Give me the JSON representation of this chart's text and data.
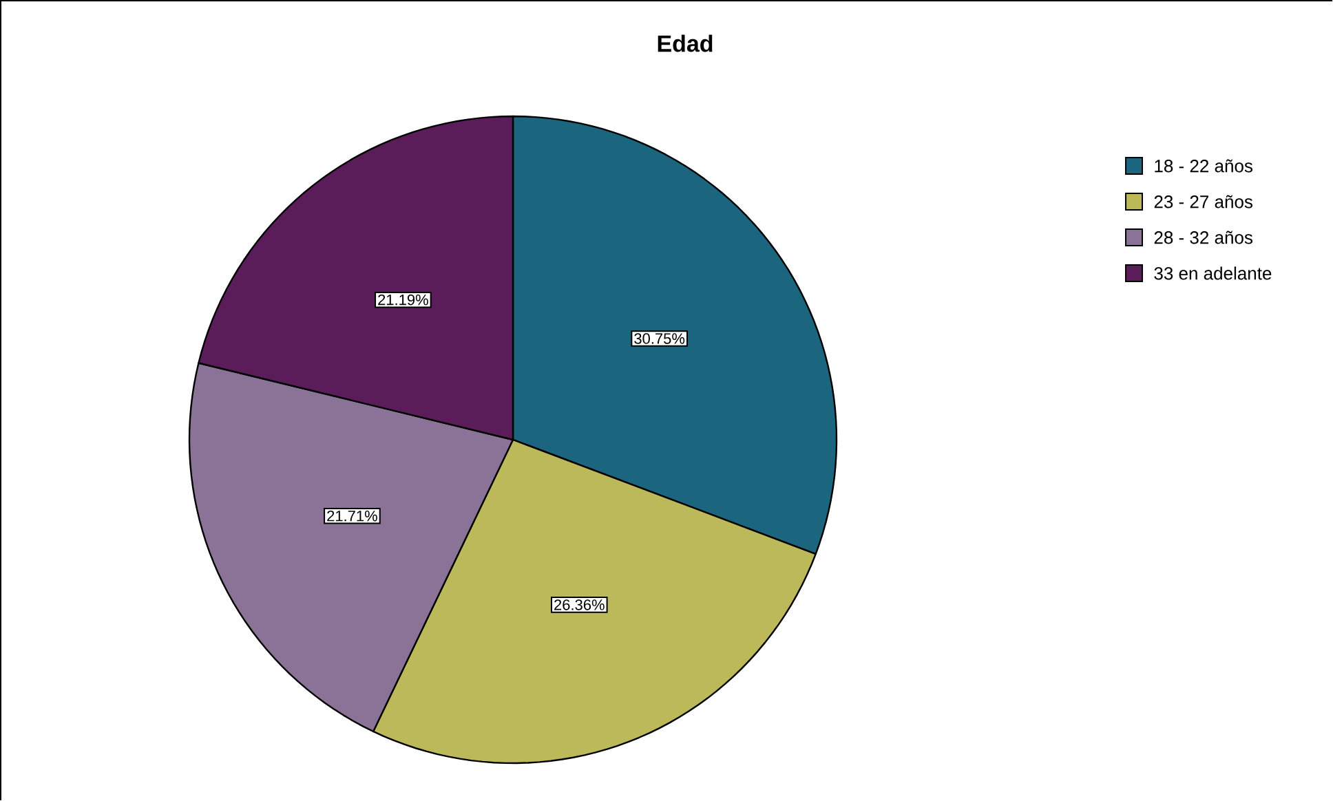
{
  "chart_data": {
    "type": "pie",
    "title": "Edad",
    "categories": [
      "18 - 22 años",
      "23 - 27 años",
      "28 - 32 años",
      "33 en adelante"
    ],
    "values": [
      30.75,
      26.36,
      21.71,
      21.19
    ],
    "value_labels": [
      "30.75%",
      "26.36%",
      "21.71%",
      "21.19%"
    ],
    "colors": [
      "#1b657e",
      "#bcb95a",
      "#8a7396",
      "#5b1c5a"
    ],
    "legend": "right"
  }
}
